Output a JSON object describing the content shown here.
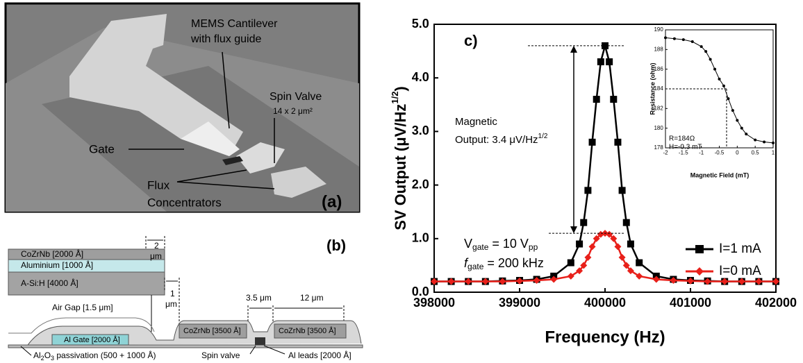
{
  "panel_a": {
    "label": "(a)",
    "cantilever": [
      "MEMS Cantilever",
      "with flux guide"
    ],
    "spin_valve": "Spin Valve",
    "spin_valve_size": "14 x 2 μm²",
    "gate": "Gate",
    "flux": [
      "Flux",
      "Concentrators"
    ]
  },
  "panel_b": {
    "label": "(b)",
    "layers": [
      "CoZrNb [2000 Å]",
      "Aluminium [1000 Å]",
      "A-Si:H [4000 Å]"
    ],
    "gap_2": [
      "2",
      "μm"
    ],
    "gap_1": [
      "1",
      "μm"
    ],
    "air_gap": "Air Gap [1.5 μm]",
    "gap_35": "3.5 μm",
    "width_12": "12 μm",
    "cozrnb_3500": [
      "CoZrNb [3500 Å]",
      "CoZrNb [3500 Å]"
    ],
    "al_gate": "Al Gate [2000 Å]",
    "passivation": [
      "Al",
      "2",
      "O",
      "3",
      " passivation (500 + 1000 Å)"
    ],
    "spin_valve": "Spin valve",
    "al_leads": "Al leads [2000 Å]"
  },
  "chart_data": [
    {
      "type": "line",
      "label": "c)",
      "xlabel": "Frequency (Hz)",
      "ylabel": [
        "SV Output (μV/Hz",
        "1/2",
        ")"
      ],
      "x": [
        398000,
        398200,
        398400,
        398600,
        398800,
        399000,
        399200,
        399400,
        399600,
        399700,
        399750,
        399800,
        399850,
        399900,
        399950,
        400000,
        400050,
        400100,
        400150,
        400200,
        400250,
        400300,
        400400,
        400600,
        400800,
        401000,
        401200,
        401400,
        401600,
        401800,
        402000
      ],
      "series": [
        {
          "name": "I=1 mA",
          "color": "#000000",
          "marker": "square",
          "values": [
            0.2,
            0.2,
            0.2,
            0.2,
            0.21,
            0.22,
            0.24,
            0.3,
            0.55,
            0.9,
            1.3,
            1.9,
            2.8,
            3.6,
            4.3,
            4.6,
            4.3,
            3.6,
            2.8,
            1.9,
            1.3,
            0.9,
            0.55,
            0.3,
            0.24,
            0.22,
            0.21,
            0.2,
            0.2,
            0.2,
            0.2
          ]
        },
        {
          "name": "I=0 mA",
          "color": "#e8201a",
          "marker": "diamond",
          "values": [
            0.2,
            0.2,
            0.2,
            0.2,
            0.2,
            0.21,
            0.22,
            0.24,
            0.3,
            0.4,
            0.5,
            0.65,
            0.85,
            1.0,
            1.08,
            1.1,
            1.08,
            1.0,
            0.85,
            0.65,
            0.5,
            0.4,
            0.3,
            0.24,
            0.22,
            0.21,
            0.2,
            0.2,
            0.2,
            0.2,
            0.2
          ]
        }
      ],
      "xlim": [
        398000,
        402000
      ],
      "xticks": [
        398000,
        399000,
        400000,
        401000,
        402000
      ],
      "ylim": [
        0,
        5
      ],
      "yticks": [
        {
          "value": 0,
          "label": "0.0"
        },
        {
          "value": 1,
          "label": "1.0"
        },
        {
          "value": 2,
          "label": "2.0"
        },
        {
          "value": 3,
          "label": "3.0"
        },
        {
          "value": 4,
          "label": "4.0"
        },
        {
          "value": 5,
          "label": "5.0"
        }
      ],
      "legend": "lower right",
      "annotations": {
        "magnetic": "Magnetic",
        "magnetic_output": [
          "Output: 3.4 μV/Hz",
          "1/2"
        ],
        "gate_voltage": [
          "V",
          "gate",
          " = 10 V",
          "pp"
        ],
        "gate_frequency": [
          "f",
          "gate",
          " = 200 kHz"
        ]
      }
    },
    {
      "type": "line",
      "xlabel": "Magnetic Field (mT)",
      "ylabel": "Resistance (ohm)",
      "x": [
        -2,
        -1.75,
        -1.5,
        -1.25,
        -1,
        -0.875,
        -0.75,
        -0.625,
        -0.5,
        -0.375,
        -0.25,
        -0.125,
        0,
        0.125,
        0.25,
        0.5,
        0.75,
        1
      ],
      "series": [
        {
          "color": "#000000",
          "marker": "circle",
          "values": [
            189.2,
            189.1,
            189.0,
            188.8,
            188.3,
            187.8,
            187.0,
            186.0,
            185.0,
            184.3,
            183.0,
            181.8,
            180.8,
            180.0,
            179.4,
            178.8,
            178.6,
            178.5
          ]
        }
      ],
      "xlim": [
        -2,
        1
      ],
      "xticks": [
        -2,
        -1.5,
        -1,
        -0.5,
        0,
        0.5,
        1
      ],
      "ylim": [
        178,
        190
      ],
      "yticks": [
        178,
        180,
        182,
        184,
        186,
        188,
        190
      ],
      "annotations": {
        "resistance": "R=184Ω",
        "field": "H=-0.3 mT"
      }
    }
  ]
}
